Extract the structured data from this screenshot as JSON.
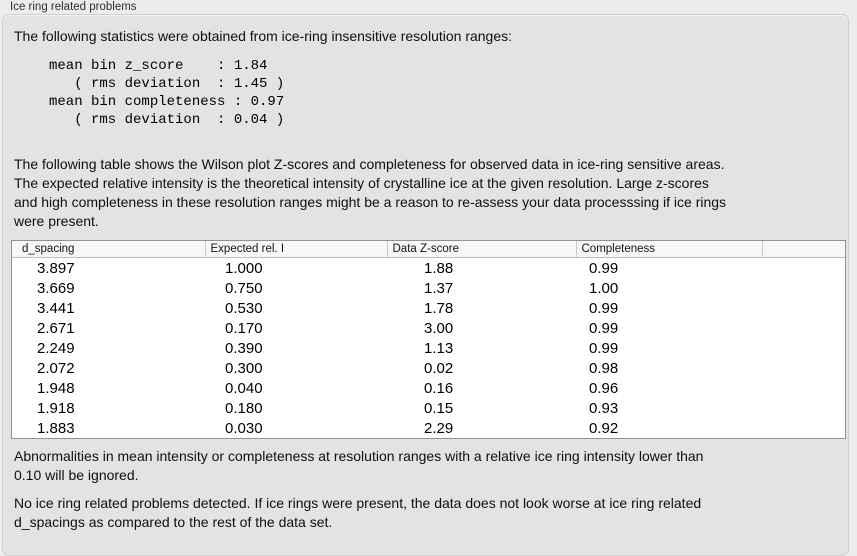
{
  "window": {
    "title": "Ice ring related problems"
  },
  "panel": {
    "intro": "The following statistics were obtained from ice-ring insensitive resolution ranges:",
    "stats_block": "mean bin z_score    : 1.84\n   ( rms deviation  : 1.45 )\nmean bin completeness : 0.97\n   ( rms deviation  : 0.04 )",
    "stats": {
      "mean_bin_z_score": "1.84",
      "z_score_rms_deviation": "1.45",
      "mean_bin_completeness": "0.97",
      "completeness_rms_deviation": "0.04"
    },
    "table_intro": "The following table shows the Wilson plot Z-scores and completeness for observed data in ice-ring sensitive areas.\nThe expected relative intensity is the theoretical intensity of crystalline ice at the given resolution. Large z-scores\nand high completeness in these resolution ranges might be a reason to re-assess your data processsing if ice rings\nwere present.",
    "table": {
      "headers": [
        "d_spacing",
        "Expected rel. I",
        "Data Z-score",
        "Completeness",
        ""
      ],
      "rows": [
        [
          "3.897",
          "1.000",
          "1.88",
          "0.99"
        ],
        [
          "3.669",
          "0.750",
          "1.37",
          "1.00"
        ],
        [
          "3.441",
          "0.530",
          "1.78",
          "0.99"
        ],
        [
          "2.671",
          "0.170",
          "3.00",
          "0.99"
        ],
        [
          "2.249",
          "0.390",
          "1.13",
          "0.99"
        ],
        [
          "2.072",
          "0.300",
          "0.02",
          "0.98"
        ],
        [
          "1.948",
          "0.040",
          "0.16",
          "0.96"
        ],
        [
          "1.918",
          "0.180",
          "0.15",
          "0.93"
        ],
        [
          "1.883",
          "0.030",
          "2.29",
          "0.92"
        ]
      ]
    },
    "note_ignore": "Abnormalities in mean intensity or completeness at resolution ranges with a relative ice ring intensity lower than\n0.10 will be ignored.",
    "conclusion": "No ice ring related problems detected. If ice rings were present, the data does not look worse at ice ring related\nd_spacings as compared to the rest of the data set."
  },
  "colors": {
    "window_background": "#ececec",
    "panel_background": "#e3e3e3",
    "panel_border": "#cfcfcf",
    "table_border": "#919191",
    "table_header_background": "#f7f7f7",
    "table_body_background": "#ffffff",
    "text": "#0f0f0f"
  }
}
